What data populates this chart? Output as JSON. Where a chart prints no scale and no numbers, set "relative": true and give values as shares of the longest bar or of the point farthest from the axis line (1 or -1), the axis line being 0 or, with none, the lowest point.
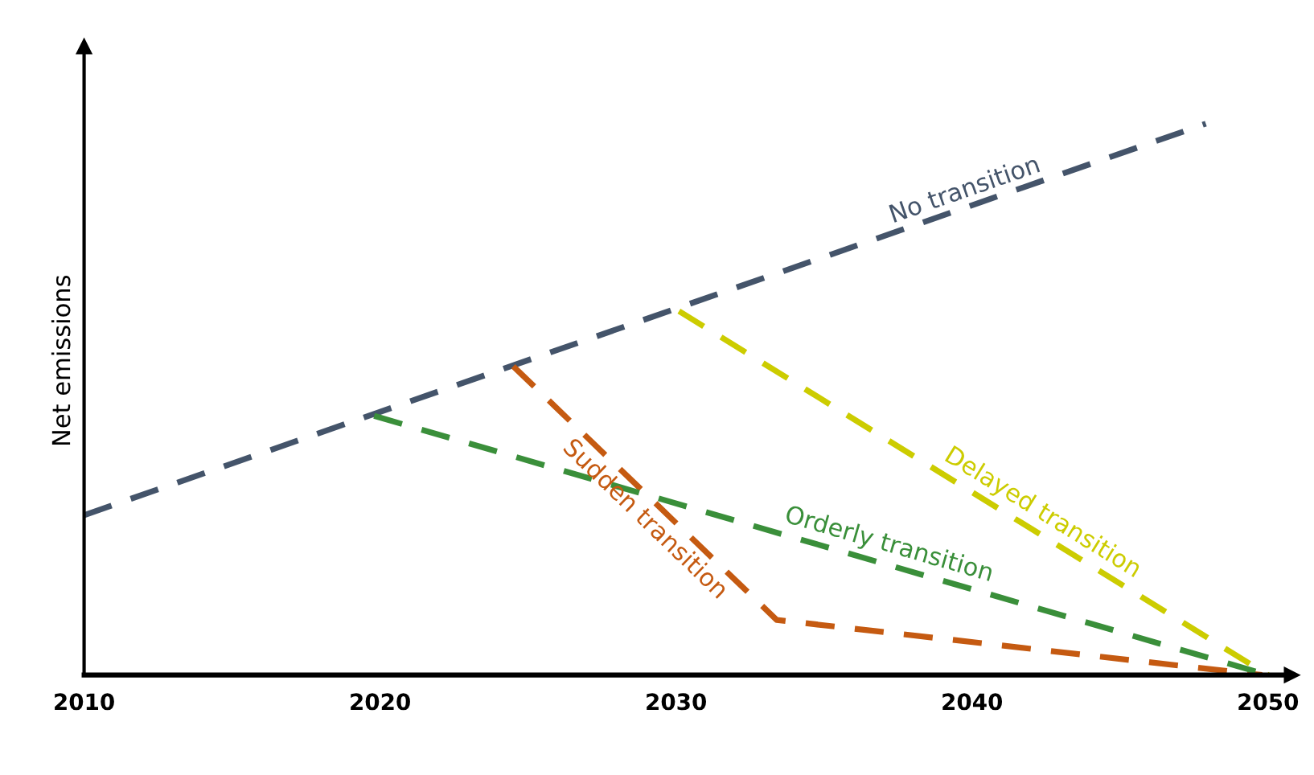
{
  "chart_data": {
    "type": "line",
    "relative": true,
    "ylabel": "Net emissions",
    "xlim": [
      2010,
      2050.8
    ],
    "xticks": [
      2010,
      2020,
      2030,
      2040,
      2050
    ],
    "grid": false,
    "legend": false,
    "line_style": "dashed",
    "marker": "none",
    "series": [
      {
        "name": "No transition",
        "color": "#44546a",
        "x": [
          2010,
          2047.9
        ],
        "values": [
          0.29,
          1.0
        ]
      },
      {
        "name": "Sudden transition",
        "color": "#c55a11",
        "x": [
          2024.5,
          2033.4,
          2049.8
        ],
        "values": [
          0.56,
          0.1,
          0.0
        ]
      },
      {
        "name": "Orderly transition",
        "color": "#3a8f3a",
        "x": [
          2019.8,
          2050
        ],
        "values": [
          0.47,
          0.0
        ]
      },
      {
        "name": "Delayed transition",
        "color": "#cccc00",
        "x": [
          2030.1,
          2050
        ],
        "values": [
          0.66,
          0.0
        ]
      }
    ]
  }
}
